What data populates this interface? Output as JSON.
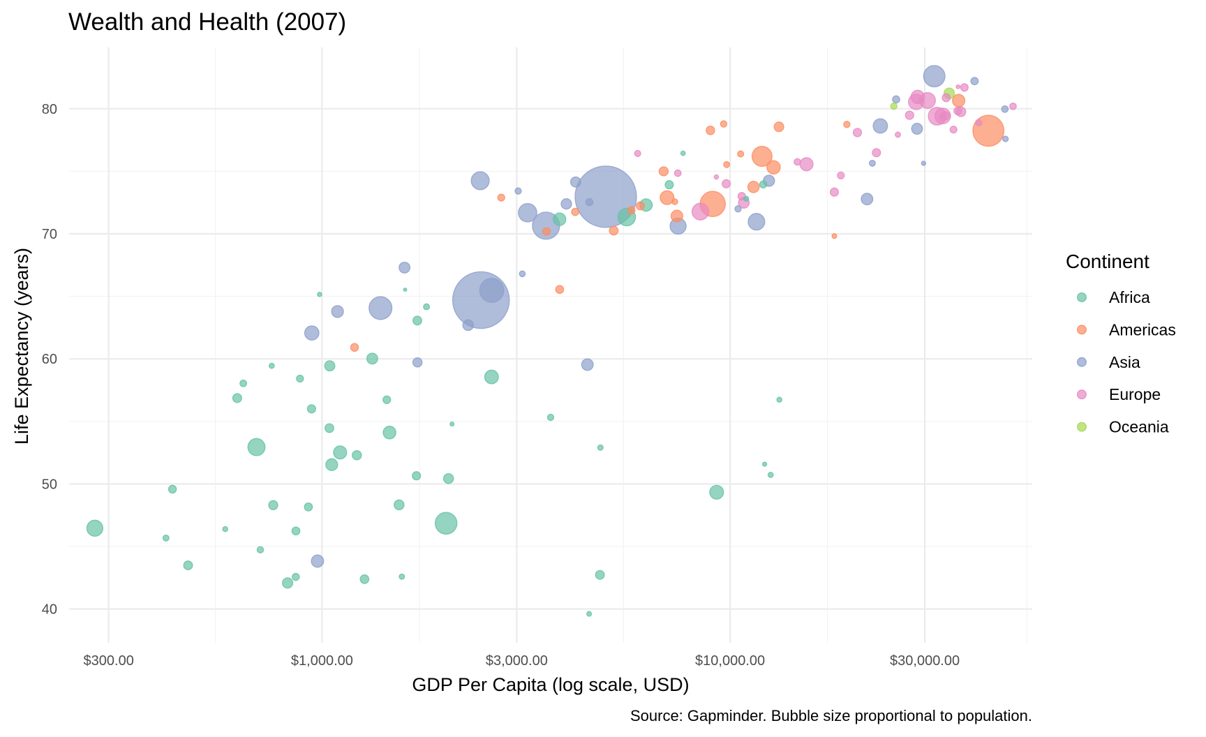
{
  "chart_data": {
    "type": "scatter",
    "title": "Wealth and Health (2007)",
    "xlabel": "GDP Per Capita (log scale, USD)",
    "ylabel": "Life Expectancy (years)",
    "caption": "Source: Gapminder. Bubble size proportional to population.",
    "x_scale": "log10",
    "x_ticks": [
      300,
      1000,
      3000,
      10000,
      30000
    ],
    "x_tick_labels": [
      "$300.00",
      "$1,000.00",
      "$3,000.00",
      "$10,000.00",
      "$30,000.00"
    ],
    "xlim": [
      240,
      55000
    ],
    "y_ticks": [
      40,
      50,
      60,
      70,
      80
    ],
    "y_tick_labels": [
      "40",
      "50",
      "60",
      "70",
      "80"
    ],
    "ylim": [
      37.3,
      84.9
    ],
    "grid": true,
    "size_variable": "population",
    "alpha": 0.7,
    "legend": {
      "title": "Continent",
      "placement": "right",
      "entries": [
        {
          "label": "Africa",
          "color": "#66c2a5"
        },
        {
          "label": "Americas",
          "color": "#fc8d62"
        },
        {
          "label": "Asia",
          "color": "#8da0cb"
        },
        {
          "label": "Europe",
          "color": "#e78ac3"
        },
        {
          "label": "Oceania",
          "color": "#a6d854"
        }
      ]
    },
    "fields": [
      "continent",
      "gdp_per_capita",
      "life_expectancy",
      "population"
    ],
    "points": [
      [
        "Africa",
        6223.367,
        72.301,
        33333216
      ],
      [
        "Africa",
        4797.231,
        42.731,
        12420476
      ],
      [
        "Africa",
        1441.285,
        56.728,
        8078314
      ],
      [
        "Africa",
        12569.85,
        50.728,
        1639131
      ],
      [
        "Africa",
        1217.033,
        52.295,
        14326203
      ],
      [
        "Africa",
        430.0707,
        49.58,
        8390505
      ],
      [
        "Africa",
        2042.095,
        50.43,
        17696293
      ],
      [
        "Africa",
        706.0165,
        44.741,
        4369038
      ],
      [
        "Africa",
        1704.064,
        50.651,
        10238807
      ],
      [
        "Africa",
        986.1479,
        65.152,
        710960
      ],
      [
        "Africa",
        277.5519,
        46.462,
        64606759
      ],
      [
        "Africa",
        3632.558,
        55.322,
        3800610
      ],
      [
        "Africa",
        1544.75,
        48.328,
        18013409
      ],
      [
        "Africa",
        2082.482,
        54.791,
        496374
      ],
      [
        "Africa",
        5581.181,
        71.338,
        80264543
      ],
      [
        "Africa",
        12154.09,
        51.579,
        551201
      ],
      [
        "Africa",
        641.3695,
        58.04,
        4906585
      ],
      [
        "Africa",
        690.8056,
        52.947,
        76511887
      ],
      [
        "Africa",
        13206.48,
        56.735,
        1454867
      ],
      [
        "Africa",
        752.7497,
        59.448,
        1688359
      ],
      [
        "Africa",
        1327.609,
        60.022,
        22873338
      ],
      [
        "Africa",
        942.6542,
        56.007,
        9947814
      ],
      [
        "Africa",
        579.2317,
        46.388,
        1472041
      ],
      [
        "Africa",
        1463.249,
        54.11,
        35610177
      ],
      [
        "Africa",
        1569.331,
        42.592,
        2012649
      ],
      [
        "Africa",
        414.5073,
        45.678,
        3193942
      ],
      [
        "Africa",
        12057.5,
        73.952,
        6036914
      ],
      [
        "Africa",
        1044.77,
        59.443,
        19167654
      ],
      [
        "Africa",
        759.3499,
        48.303,
        13327079
      ],
      [
        "Africa",
        1042.582,
        54.467,
        12031795
      ],
      [
        "Africa",
        1803.151,
        64.164,
        3270065
      ],
      [
        "Africa",
        10956.99,
        72.801,
        1250882
      ],
      [
        "Africa",
        3820.175,
        71.164,
        33757175
      ],
      [
        "Africa",
        823.6856,
        42.082,
        19951656
      ],
      [
        "Africa",
        4811.06,
        52.906,
        2055080
      ],
      [
        "Africa",
        619.6769,
        56.867,
        12894865
      ],
      [
        "Africa",
        2013.977,
        46.859,
        135031164
      ],
      [
        "Africa",
        7670.123,
        76.442,
        798094
      ],
      [
        "Africa",
        863.0885,
        46.242,
        8860588
      ],
      [
        "Africa",
        1598.435,
        65.528,
        199579
      ],
      [
        "Africa",
        1712.472,
        63.062,
        12267493
      ],
      [
        "Africa",
        862.5408,
        42.568,
        6144562
      ],
      [
        "Africa",
        926.1411,
        48.159,
        9118773
      ],
      [
        "Africa",
        9269.658,
        49.339,
        43997828
      ],
      [
        "Africa",
        2602.395,
        58.556,
        42292929
      ],
      [
        "Africa",
        4513.481,
        39.613,
        1133066
      ],
      [
        "Africa",
        1107.482,
        52.517,
        38139640
      ],
      [
        "Africa",
        882.9699,
        58.42,
        5701579
      ],
      [
        "Africa",
        7092.923,
        73.923,
        10276158
      ],
      [
        "Africa",
        1056.38,
        51.542,
        29170398
      ],
      [
        "Africa",
        1271.212,
        42.384,
        11746035
      ],
      [
        "Africa",
        469.7093,
        43.487,
        12311143
      ],
      [
        "Americas",
        12779.38,
        75.32,
        40301927
      ],
      [
        "Americas",
        3822.137,
        65.554,
        9119152
      ],
      [
        "Americas",
        9065.801,
        72.39,
        190010647
      ],
      [
        "Americas",
        36319.24,
        80.653,
        33390141
      ],
      [
        "Americas",
        13171.64,
        78.553,
        16284741
      ],
      [
        "Americas",
        7006.58,
        72.889,
        44227550
      ],
      [
        "Americas",
        9645.061,
        78.782,
        4133884
      ],
      [
        "Americas",
        8948.103,
        78.273,
        11416987
      ],
      [
        "Americas",
        6025.375,
        72.235,
        9319622
      ],
      [
        "Americas",
        6873.262,
        74.994,
        13755680
      ],
      [
        "Americas",
        5728.354,
        71.878,
        6939688
      ],
      [
        "Americas",
        5186.05,
        70.259,
        12572928
      ],
      [
        "Americas",
        1201.637,
        60.916,
        8502814
      ],
      [
        "Americas",
        3548.331,
        70.198,
        7483763
      ],
      [
        "Americas",
        7320.88,
        72.567,
        2780132
      ],
      [
        "Americas",
        11977.57,
        76.195,
        108700891
      ],
      [
        "Americas",
        2749.321,
        72.899,
        5675356
      ],
      [
        "Americas",
        9809.186,
        75.537,
        3242173
      ],
      [
        "Americas",
        4172.838,
        71.752,
        6667147
      ],
      [
        "Americas",
        7408.906,
        71.421,
        28674757
      ],
      [
        "Americas",
        19328.71,
        78.746,
        3942491
      ],
      [
        "Americas",
        18008.51,
        69.819,
        1056608
      ],
      [
        "Americas",
        42951.65,
        78.242,
        301139947
      ],
      [
        "Americas",
        10611.46,
        76.384,
        3447496
      ],
      [
        "Americas",
        11415.81,
        73.747,
        26084662
      ],
      [
        "Asia",
        974.5803,
        43.828,
        31889923
      ],
      [
        "Asia",
        29796.05,
        75.635,
        708573
      ],
      [
        "Asia",
        1391.254,
        64.062,
        150448339
      ],
      [
        "Asia",
        1713.779,
        59.723,
        14131858
      ],
      [
        "Asia",
        4959.115,
        72.961,
        1318683096
      ],
      [
        "Asia",
        39724.98,
        82.208,
        6980412
      ],
      [
        "Asia",
        2452.21,
        64.698,
        1110396331
      ],
      [
        "Asia",
        3540.652,
        70.65,
        223547000
      ],
      [
        "Asia",
        11605.71,
        70.964,
        69453570
      ],
      [
        "Asia",
        4471.062,
        59.545,
        27499638
      ],
      [
        "Asia",
        25523.28,
        80.745,
        6426679
      ],
      [
        "Asia",
        31656.07,
        82.603,
        127467972
      ],
      [
        "Asia",
        4519.461,
        72.535,
        6053193
      ],
      [
        "Asia",
        1593.065,
        67.297,
        23301725
      ],
      [
        "Asia",
        23348.14,
        78.623,
        49044790
      ],
      [
        "Asia",
        47306.99,
        77.588,
        2505559
      ],
      [
        "Asia",
        10461.06,
        71.993,
        3921278
      ],
      [
        "Asia",
        12451.66,
        74.241,
        24821286
      ],
      [
        "Asia",
        3095.772,
        66.803,
        2874127
      ],
      [
        "Asia",
        944.0,
        62.069,
        47761980
      ],
      [
        "Asia",
        1091.36,
        63.785,
        28901790
      ],
      [
        "Asia",
        22316.19,
        75.64,
        3204897
      ],
      [
        "Asia",
        2605.948,
        65.483,
        169270617
      ],
      [
        "Asia",
        3190.481,
        71.688,
        91077287
      ],
      [
        "Asia",
        21654.83,
        72.777,
        27601038
      ],
      [
        "Asia",
        47143.18,
        79.972,
        4553009
      ],
      [
        "Asia",
        3970.095,
        72.396,
        20378239
      ],
      [
        "Asia",
        4184.548,
        74.143,
        19314747
      ],
      [
        "Asia",
        28718.28,
        78.4,
        23174294
      ],
      [
        "Asia",
        7458.396,
        70.616,
        65068149
      ],
      [
        "Asia",
        2441.577,
        74.249,
        85262356
      ],
      [
        "Asia",
        3025.35,
        73.422,
        4018332
      ],
      [
        "Asia",
        2280.77,
        62.698,
        22211743
      ],
      [
        "Europe",
        5937.03,
        76.423,
        3600523
      ],
      [
        "Europe",
        36126.49,
        79.829,
        8199783
      ],
      [
        "Europe",
        33692.61,
        79.441,
        10392226
      ],
      [
        "Europe",
        7446.299,
        74.852,
        4552198
      ],
      [
        "Europe",
        10680.79,
        73.005,
        7322858
      ],
      [
        "Europe",
        14619.22,
        75.748,
        4493312
      ],
      [
        "Europe",
        22833.31,
        76.486,
        10228744
      ],
      [
        "Europe",
        35278.42,
        78.332,
        5468120
      ],
      [
        "Europe",
        33207.08,
        79.313,
        5238460
      ],
      [
        "Europe",
        30470.02,
        80.657,
        61083916
      ],
      [
        "Europe",
        32170.37,
        79.406,
        82400996
      ],
      [
        "Europe",
        27538.41,
        79.483,
        10706290
      ],
      [
        "Europe",
        18008.94,
        73.338,
        9956108
      ],
      [
        "Europe",
        36180.79,
        81.757,
        301931
      ],
      [
        "Europe",
        40676.0,
        78.885,
        4109086
      ],
      [
        "Europe",
        28569.72,
        80.546,
        58147733
      ],
      [
        "Europe",
        9253.896,
        74.543,
        684736
      ],
      [
        "Europe",
        36797.93,
        79.762,
        16570613
      ],
      [
        "Europe",
        49357.19,
        80.196,
        4627926
      ],
      [
        "Europe",
        15389.92,
        75.563,
        38518241
      ],
      [
        "Europe",
        20509.65,
        78.098,
        10642836
      ],
      [
        "Europe",
        10808.48,
        72.476,
        22276056
      ],
      [
        "Europe",
        9786.535,
        74.002,
        10150265
      ],
      [
        "Europe",
        18678.31,
        74.663,
        5447502
      ],
      [
        "Europe",
        25768.26,
        77.926,
        2009245
      ],
      [
        "Europe",
        28821.06,
        80.941,
        40448191
      ],
      [
        "Europe",
        33859.75,
        80.884,
        9031088
      ],
      [
        "Europe",
        37506.42,
        81.701,
        7554661
      ],
      [
        "Europe",
        8458.276,
        71.777,
        71158647
      ],
      [
        "Europe",
        33203.26,
        79.425,
        60776238
      ],
      [
        "Oceania",
        34435.37,
        81.235,
        20434176
      ],
      [
        "Oceania",
        25185.01,
        80.204,
        4115771
      ]
    ]
  }
}
